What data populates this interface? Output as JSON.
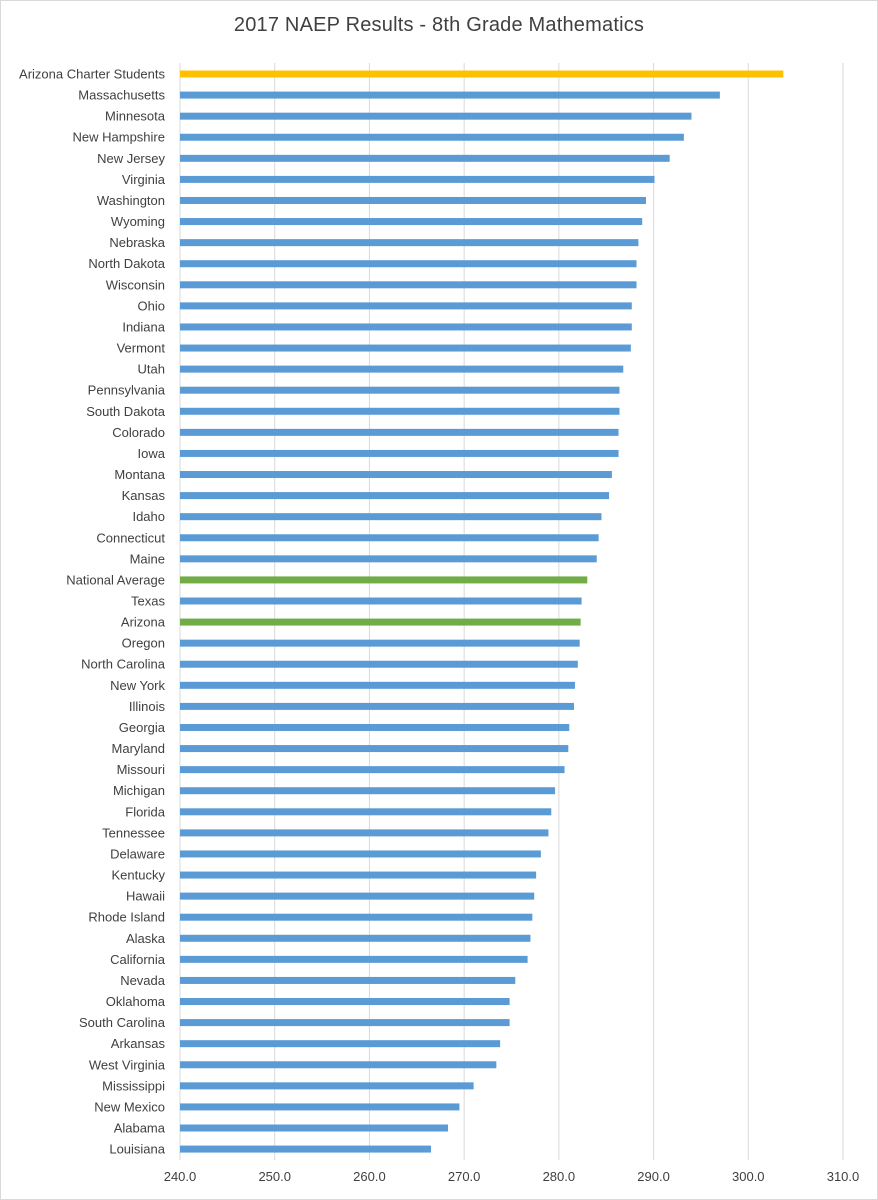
{
  "chart_data": {
    "type": "bar",
    "orientation": "horizontal",
    "title": "2017 NAEP Results - 8th Grade Mathematics",
    "xlabel": "",
    "ylabel": "",
    "xlim": [
      240,
      310
    ],
    "x_ticks": [
      "240.0",
      "250.0",
      "260.0",
      "270.0",
      "280.0",
      "290.0",
      "300.0",
      "310.0"
    ],
    "grid": "vertical",
    "legend": "none",
    "colors": {
      "default": "#5b9bd5",
      "highlight": "#ffc000",
      "reference": "#70ad47",
      "grid": "#d9d9d9",
      "text": "#404040"
    },
    "categories": [
      "Arizona Charter Students",
      "Massachusetts",
      "Minnesota",
      "New Hampshire",
      "New Jersey",
      "Virginia",
      "Washington",
      "Wyoming",
      "Nebraska",
      "North Dakota",
      "Wisconsin",
      "Ohio",
      "Indiana",
      "Vermont",
      "Utah",
      "Pennsylvania",
      "South Dakota",
      "Colorado",
      "Iowa",
      "Montana",
      "Kansas",
      "Idaho",
      "Connecticut",
      "Maine",
      "National Average",
      "Texas",
      "Arizona",
      "Oregon",
      "North Carolina",
      "New York",
      "Illinois",
      "Georgia",
      "Maryland",
      "Missouri",
      "Michigan",
      "Florida",
      "Tennessee",
      "Delaware",
      "Kentucky",
      "Hawaii",
      "Rhode Island",
      "Alaska",
      "California",
      "Nevada",
      "Oklahoma",
      "South Carolina",
      "Arkansas",
      "West Virginia",
      "Mississippi",
      "New Mexico",
      "Alabama",
      "Louisiana"
    ],
    "values": [
      303.7,
      297.0,
      294.0,
      293.2,
      291.7,
      290.1,
      289.2,
      288.8,
      288.4,
      288.2,
      288.2,
      287.7,
      287.7,
      287.6,
      286.8,
      286.4,
      286.4,
      286.3,
      286.3,
      285.6,
      285.3,
      284.5,
      284.2,
      284.0,
      283.0,
      282.4,
      282.3,
      282.2,
      282.0,
      281.7,
      281.6,
      281.1,
      281.0,
      280.6,
      279.6,
      279.2,
      278.9,
      278.1,
      277.6,
      277.4,
      277.2,
      277.0,
      276.7,
      275.4,
      274.8,
      274.8,
      273.8,
      273.4,
      271.0,
      269.5,
      268.3,
      266.5
    ],
    "bar_colors": [
      "highlight",
      "default",
      "default",
      "default",
      "default",
      "default",
      "default",
      "default",
      "default",
      "default",
      "default",
      "default",
      "default",
      "default",
      "default",
      "default",
      "default",
      "default",
      "default",
      "default",
      "default",
      "default",
      "default",
      "default",
      "reference",
      "default",
      "reference",
      "default",
      "default",
      "default",
      "default",
      "default",
      "default",
      "default",
      "default",
      "default",
      "default",
      "default",
      "default",
      "default",
      "default",
      "default",
      "default",
      "default",
      "default",
      "default",
      "default",
      "default",
      "default",
      "default",
      "default",
      "default"
    ]
  }
}
